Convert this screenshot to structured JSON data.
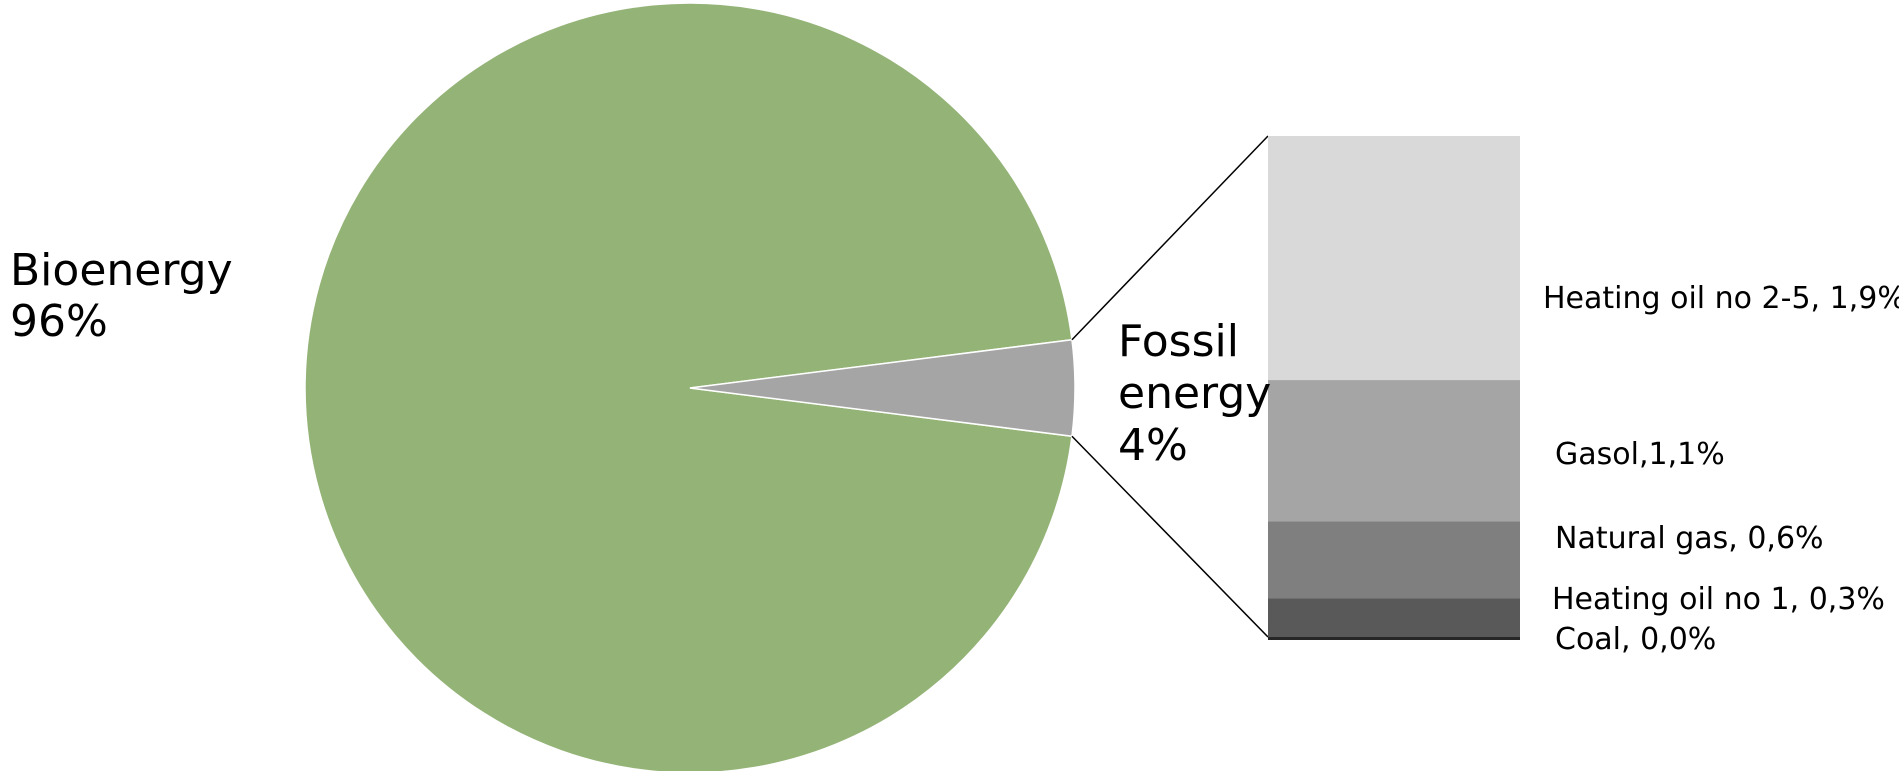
{
  "chart_data": {
    "type": "bar-of-pie",
    "title": "",
    "pie": {
      "slices": [
        {
          "name": "Bioenergy",
          "value": 96,
          "label_lines": [
            "Bioenergy",
            "96%"
          ],
          "color": "#94b377"
        },
        {
          "name": "Fossil energy",
          "value": 4,
          "label_lines": [
            "Fossil",
            "energy",
            "4%"
          ],
          "color": "#a5a5a5"
        }
      ]
    },
    "stack": {
      "of": "Fossil energy",
      "segments": [
        {
          "name": "Heating oil no 2-5",
          "value": 1.9,
          "label": "Heating oil no 2-5, 1,9%",
          "color": "#d9d9d9"
        },
        {
          "name": "Gasol",
          "value": 1.1,
          "label": "Gasol,1,1%",
          "color": "#a5a5a5"
        },
        {
          "name": "Natural gas",
          "value": 0.6,
          "label": "Natural gas, 0,6%",
          "color": "#7f7f7f"
        },
        {
          "name": "Heating oil no 1",
          "value": 0.3,
          "label": "Heating oil no 1, 0,3%",
          "color": "#595959"
        },
        {
          "name": "Coal",
          "value": 0.0,
          "label": "Coal,  0,0%",
          "color": "#262626"
        }
      ]
    }
  }
}
